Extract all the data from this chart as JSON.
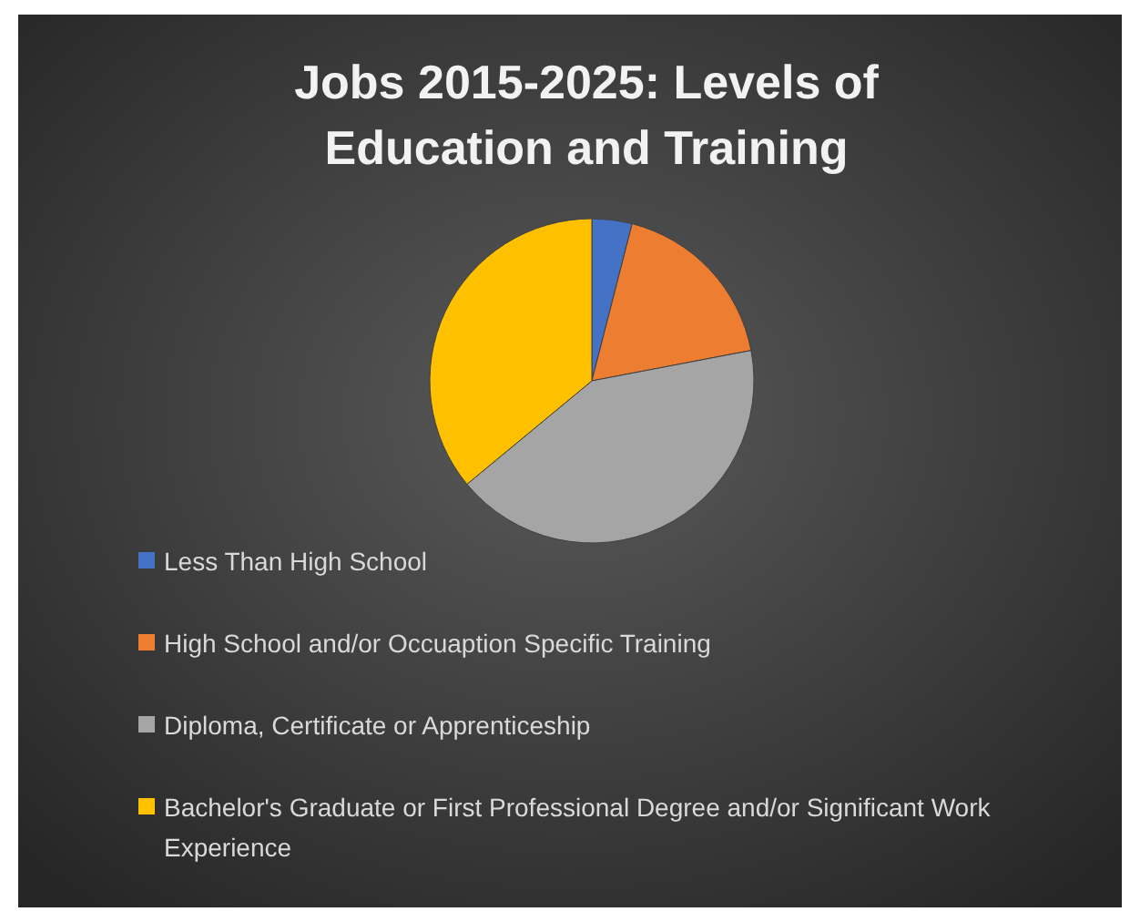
{
  "chart_data": {
    "type": "pie",
    "title": "Jobs 2015-2025: Levels of Education  and Training",
    "categories": [
      "Less Than High School",
      "High School and/or Occuaption Specific Training",
      "Diploma, Certificate or Apprenticeship",
      "Bachelor's Graduate or First Professional Degree and/or Significant Work Experience"
    ],
    "values": [
      4,
      18,
      42,
      36
    ],
    "colors": [
      "#4472c4",
      "#ed7d31",
      "#a5a5a5",
      "#ffc000"
    ],
    "legend": "bottom"
  }
}
